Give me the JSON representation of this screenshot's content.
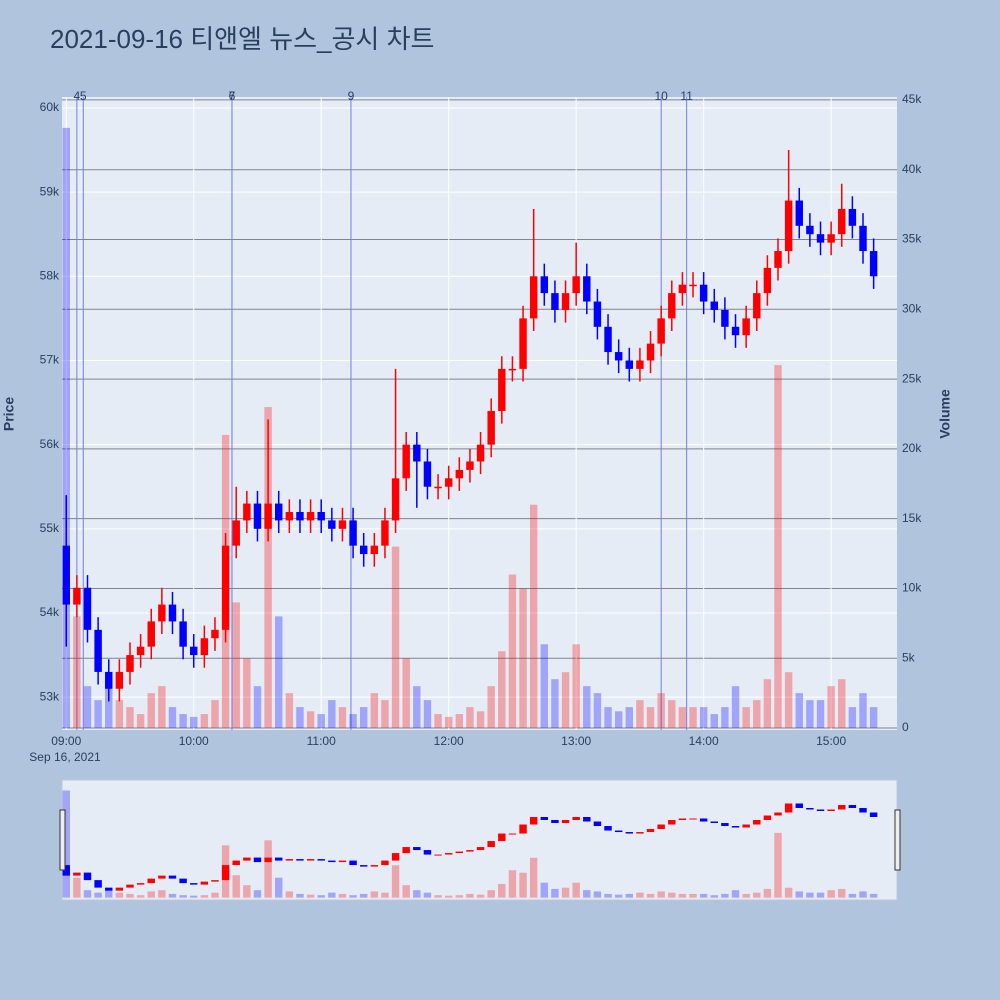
{
  "chart_data": {
    "type": "candlestick",
    "title": "2021-09-16 티앤엘 뉴스_공시 차트",
    "y_label": "Price",
    "y2_label": "Volume",
    "x_date_label": "Sep 16, 2021",
    "up_color": "#ff0000",
    "down_color": "#0000ff",
    "news_color": "#6f7fe8",
    "title_color": "#e8556b",
    "x": [
      "2021-09-16 09:00",
      "2021-09-16 09:05",
      "2021-09-16 09:10",
      "2021-09-16 09:15",
      "2021-09-16 09:20",
      "2021-09-16 09:25",
      "2021-09-16 09:30",
      "2021-09-16 09:35",
      "2021-09-16 09:40",
      "2021-09-16 09:45",
      "2021-09-16 09:50",
      "2021-09-16 09:55",
      "2021-09-16 10:00",
      "2021-09-16 10:05",
      "2021-09-16 10:10",
      "2021-09-16 10:15",
      "2021-09-16 10:20",
      "2021-09-16 10:25",
      "2021-09-16 10:30",
      "2021-09-16 10:35",
      "2021-09-16 10:40",
      "2021-09-16 10:45",
      "2021-09-16 10:50",
      "2021-09-16 10:55",
      "2021-09-16 11:00",
      "2021-09-16 11:05",
      "2021-09-16 11:10",
      "2021-09-16 11:15",
      "2021-09-16 11:20",
      "2021-09-16 11:25",
      "2021-09-16 11:30",
      "2021-09-16 11:35",
      "2021-09-16 11:40",
      "2021-09-16 11:45",
      "2021-09-16 11:50",
      "2021-09-16 11:55",
      "2021-09-16 12:00",
      "2021-09-16 12:05",
      "2021-09-16 12:10",
      "2021-09-16 12:15",
      "2021-09-16 12:20",
      "2021-09-16 12:25",
      "2021-09-16 12:30",
      "2021-09-16 12:35",
      "2021-09-16 12:40",
      "2021-09-16 12:45",
      "2021-09-16 12:50",
      "2021-09-16 12:55",
      "2021-09-16 13:00",
      "2021-09-16 13:05",
      "2021-09-16 13:10",
      "2021-09-16 13:15",
      "2021-09-16 13:20",
      "2021-09-16 13:25",
      "2021-09-16 13:30",
      "2021-09-16 13:35",
      "2021-09-16 13:40",
      "2021-09-16 13:45",
      "2021-09-16 13:50",
      "2021-09-16 13:55",
      "2021-09-16 14:00",
      "2021-09-16 14:05",
      "2021-09-16 14:10",
      "2021-09-16 14:15",
      "2021-09-16 14:20",
      "2021-09-16 14:25",
      "2021-09-16 14:30",
      "2021-09-16 14:35",
      "2021-09-16 14:40",
      "2021-09-16 14:45",
      "2021-09-16 14:50",
      "2021-09-16 14:55",
      "2021-09-16 15:00",
      "2021-09-16 15:05",
      "2021-09-16 15:10",
      "2021-09-16 15:15",
      "2021-09-16 15:20"
    ],
    "open": [
      54800,
      54100,
      54300,
      53800,
      53300,
      53100,
      53300,
      53500,
      53600,
      53900,
      54100,
      53900,
      53600,
      53500,
      53700,
      53800,
      54800,
      55100,
      55300,
      55000,
      55300,
      55100,
      55200,
      55100,
      55200,
      55100,
      55000,
      55100,
      54800,
      54700,
      54800,
      55100,
      55600,
      56000,
      55800,
      55500,
      55500,
      55600,
      55700,
      55800,
      56000,
      56400,
      56900,
      56900,
      57500,
      58000,
      57800,
      57600,
      57800,
      58000,
      57700,
      57400,
      57100,
      57000,
      56900,
      57000,
      57200,
      57500,
      57800,
      57900,
      57900,
      57700,
      57600,
      57400,
      57300,
      57500,
      57800,
      58100,
      58300,
      58900,
      58600,
      58500,
      58400,
      58500,
      58800,
      58600,
      58300
    ],
    "high": [
      55400,
      54450,
      54450,
      53950,
      53450,
      53450,
      53650,
      53750,
      54050,
      54300,
      54250,
      54050,
      53750,
      53850,
      53950,
      54950,
      55500,
      55450,
      55450,
      56300,
      55450,
      55350,
      55350,
      55350,
      55350,
      55250,
      55250,
      55250,
      54950,
      54950,
      55250,
      56900,
      56150,
      56150,
      55950,
      55650,
      55750,
      55850,
      55950,
      56150,
      56550,
      57050,
      57050,
      57650,
      58800,
      58150,
      57950,
      57950,
      58400,
      58150,
      57850,
      57550,
      57250,
      57150,
      57150,
      57350,
      57650,
      57950,
      58050,
      58050,
      58050,
      57850,
      57750,
      57550,
      57650,
      57950,
      58250,
      58450,
      59500,
      59050,
      58750,
      58650,
      58650,
      59100,
      58950,
      58750,
      58450
    ],
    "low": [
      53600,
      53950,
      53650,
      53150,
      52950,
      52950,
      53150,
      53350,
      53450,
      53750,
      53750,
      53450,
      53350,
      53350,
      53550,
      53650,
      54650,
      54950,
      54850,
      54850,
      54950,
      54950,
      54950,
      54950,
      54950,
      54850,
      54850,
      54650,
      54550,
      54550,
      54650,
      54950,
      55450,
      55250,
      55350,
      55350,
      55350,
      55450,
      55550,
      55650,
      55850,
      56250,
      56750,
      56750,
      57350,
      57650,
      57450,
      57450,
      57650,
      57550,
      57250,
      56950,
      56850,
      56750,
      56750,
      56850,
      57050,
      57350,
      57650,
      57750,
      57550,
      57450,
      57250,
      57150,
      57150,
      57350,
      57650,
      57950,
      58150,
      58450,
      58350,
      58250,
      58250,
      58350,
      58450,
      58150,
      57850
    ],
    "close": [
      54100,
      54300,
      53800,
      53300,
      53100,
      53300,
      53500,
      53600,
      53900,
      54100,
      53900,
      53600,
      53500,
      53700,
      53800,
      54800,
      55100,
      55300,
      55000,
      55300,
      55100,
      55200,
      55100,
      55200,
      55100,
      55000,
      55100,
      54800,
      54700,
      54800,
      55100,
      55600,
      56000,
      55800,
      55500,
      55500,
      55600,
      55700,
      55800,
      56000,
      56400,
      56900,
      56900,
      57500,
      58000,
      57800,
      57600,
      57800,
      58000,
      57700,
      57400,
      57100,
      57000,
      56900,
      57000,
      57200,
      57500,
      57800,
      57900,
      57900,
      57700,
      57600,
      57400,
      57300,
      57500,
      57800,
      58100,
      58300,
      58900,
      58600,
      58500,
      58400,
      58500,
      58800,
      58600,
      58300,
      58000
    ],
    "volume": [
      43000,
      8000,
      3000,
      2000,
      3500,
      2000,
      1500,
      1000,
      2500,
      3000,
      1500,
      1000,
      800,
      1000,
      2000,
      21000,
      9000,
      5000,
      3000,
      23000,
      8000,
      2500,
      1500,
      1200,
      1000,
      2000,
      1500,
      1000,
      1500,
      2500,
      2000,
      13000,
      5000,
      3000,
      2000,
      1000,
      800,
      1000,
      1500,
      1200,
      3000,
      5500,
      11000,
      10000,
      16000,
      6000,
      3500,
      4000,
      6000,
      3000,
      2500,
      1500,
      1200,
      1500,
      2000,
      1500,
      2500,
      2000,
      1500,
      1500,
      1500,
      1000,
      1500,
      3000,
      1500,
      2000,
      3500,
      26000,
      4000,
      2500,
      2000,
      2000,
      3000,
      3500,
      1500,
      2500,
      1500
    ],
    "news": [
      {
        "label": "4",
        "x": "2021-09-16 09:05"
      },
      {
        "label": "5",
        "x": "2021-09-16 09:08"
      },
      {
        "label": "6",
        "x": "2021-09-16 10:18"
      },
      {
        "label": "7",
        "x": "2021-09-16 10:18"
      },
      {
        "label": "9",
        "x": "2021-09-16 11:14"
      },
      {
        "label": "10",
        "x": "2021-09-16 13:40"
      },
      {
        "label": "11",
        "x": "2021-09-16 13:52"
      }
    ],
    "xlim": [
      "2021-09-16 08:58",
      "2021-09-16 15:31"
    ],
    "xticks": [
      {
        "value": "2021-09-16 09:00",
        "label": "09:00"
      },
      {
        "value": "2021-09-16 10:00",
        "label": "10:00"
      },
      {
        "value": "2021-09-16 11:00",
        "label": "11:00"
      },
      {
        "value": "2021-09-16 12:00",
        "label": "12:00"
      },
      {
        "value": "2021-09-16 13:00",
        "label": "13:00"
      },
      {
        "value": "2021-09-16 14:00",
        "label": "14:00"
      },
      {
        "value": "2021-09-16 15:00",
        "label": "15:00"
      }
    ],
    "ylim": [
      52610,
      60130
    ],
    "yticks": [
      {
        "value": 53000,
        "label": "53k"
      },
      {
        "value": 54000,
        "label": "54k"
      },
      {
        "value": 55000,
        "label": "55k"
      },
      {
        "value": 56000,
        "label": "56k"
      },
      {
        "value": 57000,
        "label": "57k"
      },
      {
        "value": 58000,
        "label": "58k"
      },
      {
        "value": 59000,
        "label": "59k"
      },
      {
        "value": 60000,
        "label": "60k"
      }
    ],
    "y2lim": [
      -140,
      45210
    ],
    "y2ticks": [
      0,
      {
        "value": 5000,
        "label": "5k"
      },
      {
        "value": 10000,
        "label": "10k"
      },
      {
        "value": 15000,
        "label": "15k"
      },
      {
        "value": 20000,
        "label": "20k"
      },
      {
        "value": 25000,
        "label": "25k"
      },
      {
        "value": 30000,
        "label": "30k"
      },
      {
        "value": 35000,
        "label": "35k"
      },
      {
        "value": 40000,
        "label": "40k"
      },
      {
        "value": 45000,
        "label": "45k"
      }
    ],
    "grid": true
  }
}
